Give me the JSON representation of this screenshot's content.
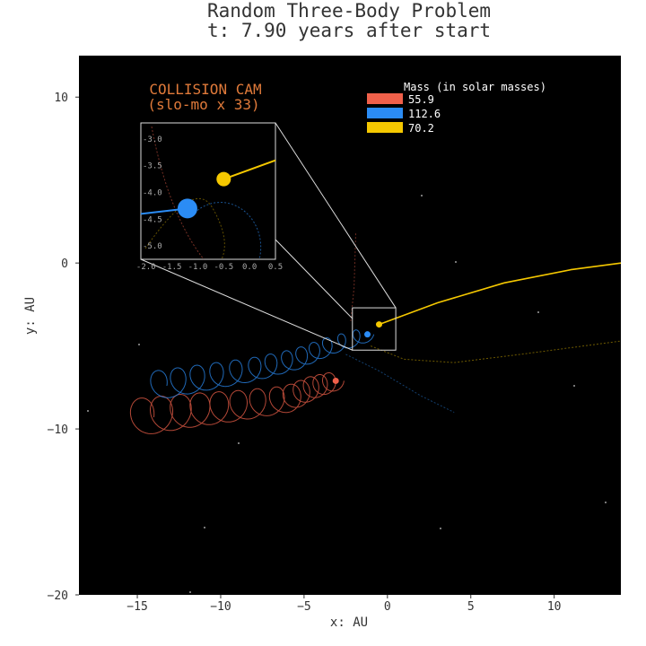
{
  "chart_data": {
    "type": "scatter",
    "title": "Random Three-Body Problem",
    "subtitle": "t: 7.90 years after start",
    "xlabel": "x: AU",
    "ylabel": "y: AU",
    "xlim": [
      -18.5,
      14
    ],
    "ylim": [
      -20,
      12.5
    ],
    "xticks": [
      -15,
      -10,
      -5,
      0,
      5,
      10
    ],
    "yticks": [
      10,
      0,
      -10,
      -20
    ],
    "background": "#000000",
    "grid": false,
    "legend": {
      "title": "Mass (in solar masses)",
      "placement": "top-right",
      "entries": [
        "55.9",
        "112.6",
        "70.2"
      ]
    },
    "series": [
      {
        "name": "55.9",
        "color": "#f0604a",
        "current": [
          -3.1,
          -7.1
        ],
        "trail_path": [
          [
            -15,
            -9.3
          ],
          [
            -12,
            -8.9
          ],
          [
            -9,
            -8.6
          ],
          [
            -6,
            -8.2
          ],
          [
            -4.5,
            -7.5
          ],
          [
            -3.1,
            -7.1
          ]
        ],
        "loop_radius": 0.9
      },
      {
        "name": "112.6",
        "color": "#2b8cf5",
        "current": [
          -1.2,
          -4.3
        ],
        "trail_path": [
          [
            -14,
            -7.4
          ],
          [
            -11,
            -6.9
          ],
          [
            -8,
            -6.4
          ],
          [
            -5.5,
            -5.8
          ],
          [
            -3.5,
            -5.0
          ],
          [
            -1.2,
            -4.3
          ]
        ],
        "loop_radius": 0.7
      },
      {
        "name": "70.2",
        "color": "#f5c800",
        "current": [
          -0.5,
          -3.7
        ],
        "trail_path": [
          [
            -0.5,
            -3.7
          ],
          [
            3,
            -2.4
          ],
          [
            7,
            -1.2
          ],
          [
            11,
            -0.4
          ],
          [
            14,
            0
          ]
        ],
        "loop_radius": 0
      }
    ],
    "faint_trails": [
      {
        "color": "#2b8cf5",
        "points": [
          [
            -2.5,
            -5.5
          ],
          [
            -0.5,
            -6.5
          ],
          [
            2,
            -8
          ],
          [
            4,
            -9
          ]
        ]
      },
      {
        "color": "#f5c800",
        "points": [
          [
            -1,
            -5
          ],
          [
            1,
            -5.8
          ],
          [
            4,
            -6
          ],
          [
            8,
            -5.5
          ],
          [
            14,
            -4.7
          ]
        ]
      },
      {
        "color": "#f0604a",
        "points": [
          [
            -2.2,
            -3.5
          ],
          [
            -2.0,
            -1.5
          ],
          [
            -1.9,
            1.8
          ]
        ]
      }
    ],
    "inset": {
      "label_line1": "COLLISION CAM",
      "label_line2": "(slo-mo x 33)",
      "xlim": [
        -2.1,
        0.5
      ],
      "ylim": [
        -5.25,
        -2.7
      ],
      "xticks": [
        -2.0,
        -1.5,
        -1.0,
        -0.5,
        0.0,
        0.5
      ],
      "yticks": [
        -3.0,
        -3.5,
        -4.0,
        -4.5,
        -5.0
      ],
      "xtick_labels": [
        "-2.0",
        "-1.5",
        "-1.0",
        "-0.5",
        "0.0",
        "0.5"
      ],
      "ytick_labels": [
        "-3.0",
        "-3.5",
        "-4.0",
        "-4.5",
        "-5.0"
      ],
      "bodies": [
        {
          "name": "112.6",
          "color": "#2b8cf5",
          "x": -1.2,
          "y": -4.3,
          "r": 11,
          "tail_to": [
            -2.1,
            -4.4
          ]
        },
        {
          "name": "70.2",
          "color": "#f5c800",
          "x": -0.5,
          "y": -3.75,
          "r": 8,
          "tail_to": [
            0.5,
            -3.4
          ]
        }
      ]
    },
    "zoom_box": {
      "xlim": [
        -2.1,
        0.5
      ],
      "ylim": [
        -5.25,
        -2.7
      ]
    }
  }
}
